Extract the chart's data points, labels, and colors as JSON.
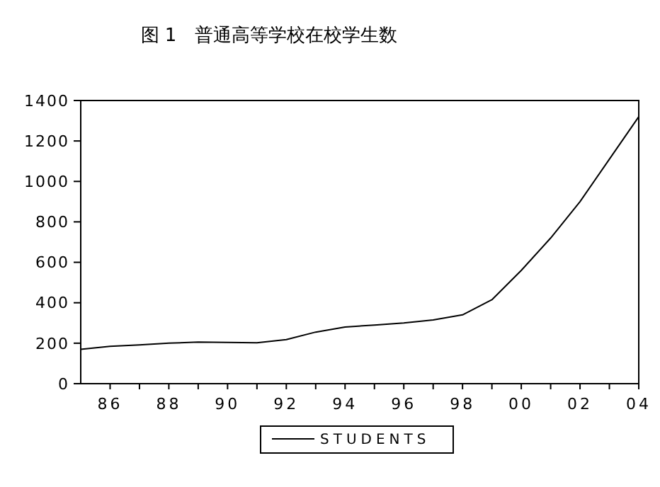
{
  "chart_data": {
    "type": "line",
    "title": "图 1　普通高等学校在校学生数",
    "x": [
      1985,
      1986,
      1987,
      1988,
      1989,
      1990,
      1991,
      1992,
      1993,
      1994,
      1995,
      1996,
      1997,
      1998,
      1999,
      2000,
      2001,
      2002,
      2003,
      2004
    ],
    "series": [
      {
        "name": "STUDENTS",
        "color": "#000000",
        "values": [
          170,
          185,
          192,
          200,
          206,
          204,
          202,
          218,
          255,
          280,
          290,
          300,
          315,
          340,
          415,
          560,
          720,
          900,
          1110,
          1320
        ]
      }
    ],
    "xlim": [
      1985,
      2004
    ],
    "xticks": [
      {
        "value": 1986,
        "label": "86"
      },
      {
        "value": 1987,
        "label": null
      },
      {
        "value": 1988,
        "label": "88"
      },
      {
        "value": 1989,
        "label": null
      },
      {
        "value": 1990,
        "label": "90"
      },
      {
        "value": 1991,
        "label": null
      },
      {
        "value": 1992,
        "label": "92"
      },
      {
        "value": 1993,
        "label": null
      },
      {
        "value": 1994,
        "label": "94"
      },
      {
        "value": 1995,
        "label": null
      },
      {
        "value": 1996,
        "label": "96"
      },
      {
        "value": 1997,
        "label": null
      },
      {
        "value": 1998,
        "label": "98"
      },
      {
        "value": 1999,
        "label": null
      },
      {
        "value": 2000,
        "label": "00"
      },
      {
        "value": 2001,
        "label": null
      },
      {
        "value": 2002,
        "label": "02"
      },
      {
        "value": 2003,
        "label": null
      },
      {
        "value": 2004,
        "label": "04"
      }
    ],
    "ylim": [
      0,
      1400
    ],
    "yticks": [
      0,
      200,
      400,
      600,
      800,
      1000,
      1200,
      1400
    ],
    "grid": false,
    "legend": "bottom",
    "line_style": "solid",
    "marker": "none"
  }
}
